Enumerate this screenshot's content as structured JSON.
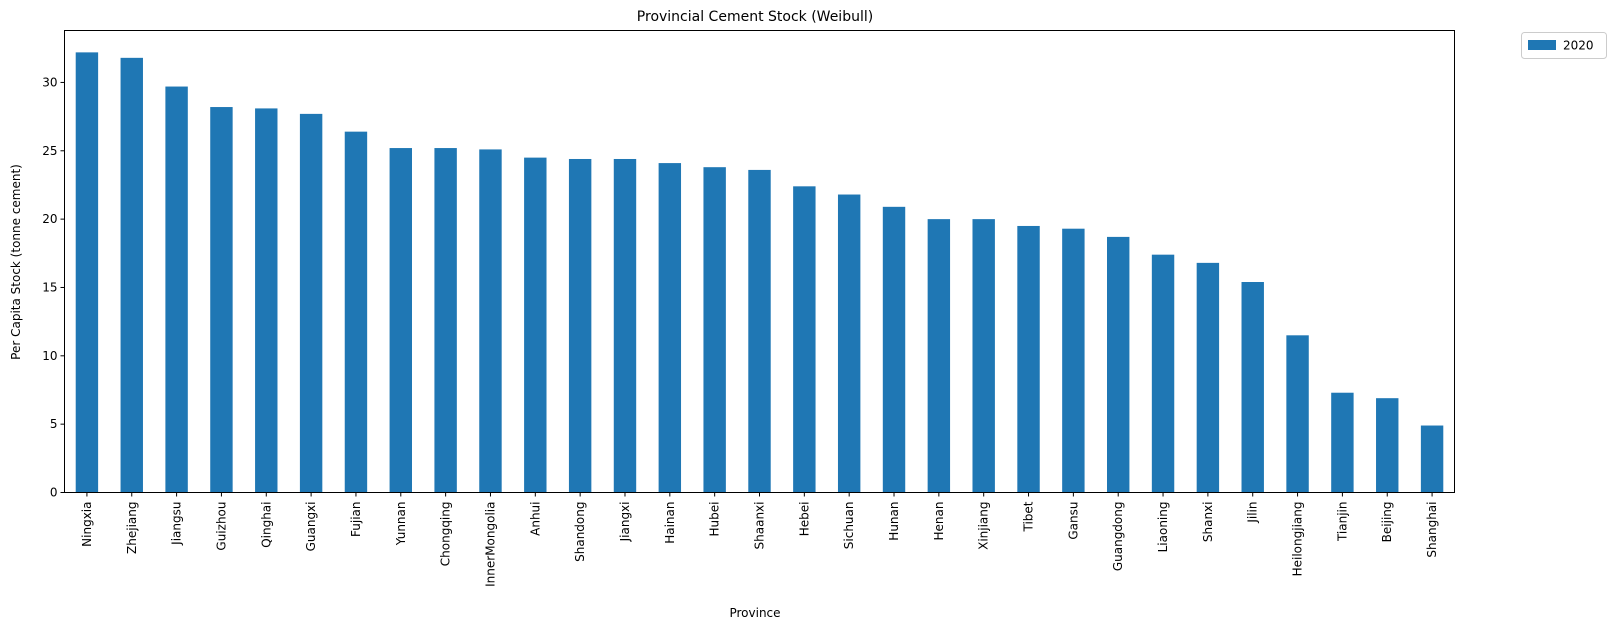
{
  "chart_data": {
    "type": "bar",
    "title": "Provincial Cement Stock (Weibull)",
    "xlabel": "Province",
    "ylabel": "Per Capita Stock (tonne cement)",
    "ylim": [
      0,
      33.8
    ],
    "yticks": [
      0,
      5,
      10,
      15,
      20,
      25,
      30
    ],
    "grid": false,
    "legend": "outside-top-right",
    "categories": [
      "Ningxia",
      "Zhejiang",
      "Jiangsu",
      "Guizhou",
      "Qinghai",
      "Guangxi",
      "Fujian",
      "Yunnan",
      "Chongqing",
      "InnerMongolia",
      "Anhui",
      "Shandong",
      "Jiangxi",
      "Hainan",
      "Hubei",
      "Shaanxi",
      "Hebei",
      "Sichuan",
      "Hunan",
      "Henan",
      "Xinjiang",
      "Tibet",
      "Gansu",
      "Guangdong",
      "Liaoning",
      "Shanxi",
      "Jilin",
      "Heilongjiang",
      "Tianjin",
      "Beijing",
      "Shanghai"
    ],
    "series": [
      {
        "name": "2020",
        "color": "#1f77b4",
        "values": [
          32.2,
          31.8,
          29.7,
          28.2,
          28.1,
          27.7,
          26.4,
          25.2,
          25.2,
          25.1,
          24.5,
          24.4,
          24.4,
          24.1,
          23.8,
          23.6,
          22.4,
          21.8,
          20.9,
          20.0,
          20.0,
          19.5,
          19.3,
          18.7,
          17.4,
          16.8,
          15.4,
          11.5,
          7.3,
          6.9,
          4.9
        ]
      }
    ]
  }
}
